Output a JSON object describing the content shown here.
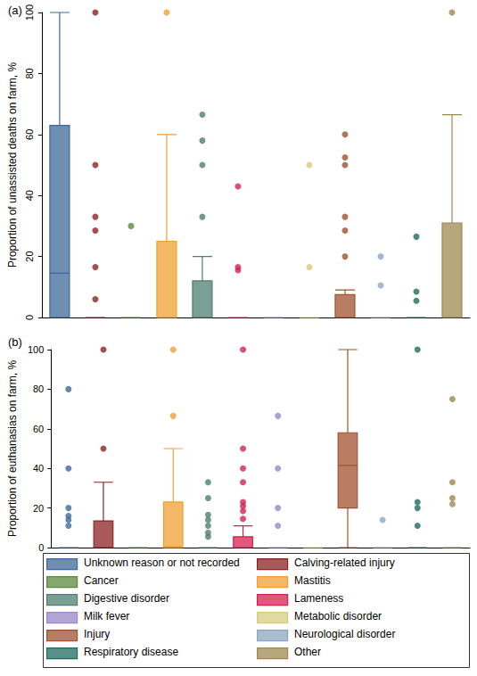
{
  "chart_data": [
    {
      "type": "boxplot",
      "title": "(a)",
      "y_label": "Proportion of unassisted deaths on farm, %",
      "categories": [
        "Unknown reason or not recorded",
        "Calving-related injury",
        "Cancer",
        "Mastitis",
        "Digestive disorder",
        "Lameness",
        "Milk fever",
        "Metabolic disorder",
        "Injury",
        "Neurological disorder",
        "Respiratory disease",
        "Other"
      ],
      "colors": [
        "#3e6a9a",
        "#8b2323",
        "#5b8a3c",
        "#f0a030",
        "#4f7f72",
        "#d62050",
        "#9a86c8",
        "#d6cc80",
        "#a0522d",
        "#8ea6c0",
        "#1f6b62",
        "#a08850"
      ],
      "boxes": [
        [
          0,
          0,
          14.5,
          63,
          100
        ],
        [
          0,
          0,
          0,
          0,
          0
        ],
        [
          0,
          0,
          0,
          0,
          0
        ],
        [
          0,
          0,
          0,
          25,
          60
        ],
        [
          0,
          0,
          0,
          12,
          20
        ],
        [
          0,
          0,
          0,
          0,
          0
        ],
        [
          0,
          0,
          0,
          0,
          0
        ],
        [
          0,
          0,
          0,
          0,
          0
        ],
        [
          0,
          0,
          0,
          7.5,
          9
        ],
        [
          0,
          0,
          0,
          0,
          0
        ],
        [
          0,
          0,
          0,
          0,
          0
        ],
        [
          0,
          0,
          0,
          31,
          66.5
        ]
      ],
      "outliers": [
        [],
        [
          100,
          50,
          33,
          28.5,
          16.5,
          6
        ],
        [
          30
        ],
        [
          100
        ],
        [
          66.5,
          58,
          50,
          33
        ],
        [
          43,
          16.5,
          15.5
        ],
        [],
        [
          50,
          16.5
        ],
        [
          60,
          52.5,
          50,
          33,
          28.5,
          20
        ],
        [
          20,
          10.5
        ],
        [
          26.5,
          8.5,
          5.5
        ],
        [
          100
        ]
      ],
      "ylim": [
        0,
        100
      ],
      "yticks": [
        0,
        20,
        40,
        60,
        80,
        100
      ],
      "tick_labels": "y",
      "grid": false
    },
    {
      "type": "boxplot",
      "title": "(b)",
      "y_label": "Proportion of euthanasias on farm, %",
      "categories": [
        "Unknown reason or not recorded",
        "Calving-related injury",
        "Cancer",
        "Mastitis",
        "Digestive disorder",
        "Lameness",
        "Milk fever",
        "Metabolic disorder",
        "Injury",
        "Neurological disorder",
        "Respiratory disease",
        "Other"
      ],
      "colors": [
        "#3e6a9a",
        "#8b2323",
        "#5b8a3c",
        "#f0a030",
        "#4f7f72",
        "#d62050",
        "#9a86c8",
        "#d6cc80",
        "#a0522d",
        "#8ea6c0",
        "#1f6b62",
        "#a08850"
      ],
      "boxes": [
        [
          0,
          0,
          0,
          0,
          0
        ],
        [
          0,
          0,
          0,
          13.5,
          33
        ],
        [
          0,
          0,
          0,
          0,
          0
        ],
        [
          0,
          0,
          0.5,
          23,
          50
        ],
        [
          0,
          0,
          0,
          0,
          0
        ],
        [
          0,
          0,
          0,
          5.5,
          11
        ],
        [
          0,
          0,
          0,
          0,
          0
        ],
        [
          0,
          0,
          0,
          0,
          0
        ],
        [
          0,
          20,
          41.5,
          58,
          100
        ],
        [
          0,
          0,
          0,
          0,
          0
        ],
        [
          0,
          0,
          0,
          0,
          0
        ],
        [
          0,
          0,
          0,
          0,
          0
        ]
      ],
      "outliers": [
        [
          80,
          40,
          20,
          16,
          14,
          11
        ],
        [
          100,
          50
        ],
        [],
        [
          100,
          66.5
        ],
        [
          33,
          25,
          16.5,
          14,
          11,
          7.5,
          5.5
        ],
        [
          100,
          50,
          40,
          33,
          23,
          21,
          18.5,
          14.5
        ],
        [
          66.5,
          40,
          20,
          11
        ],
        [],
        [],
        [
          14
        ],
        [
          100,
          23,
          20,
          11
        ],
        [
          75,
          33,
          25,
          22
        ]
      ],
      "ylim": [
        0,
        100
      ],
      "yticks": [
        0,
        20,
        40,
        60,
        80,
        100
      ],
      "tick_labels": "y",
      "grid": false
    }
  ]
}
